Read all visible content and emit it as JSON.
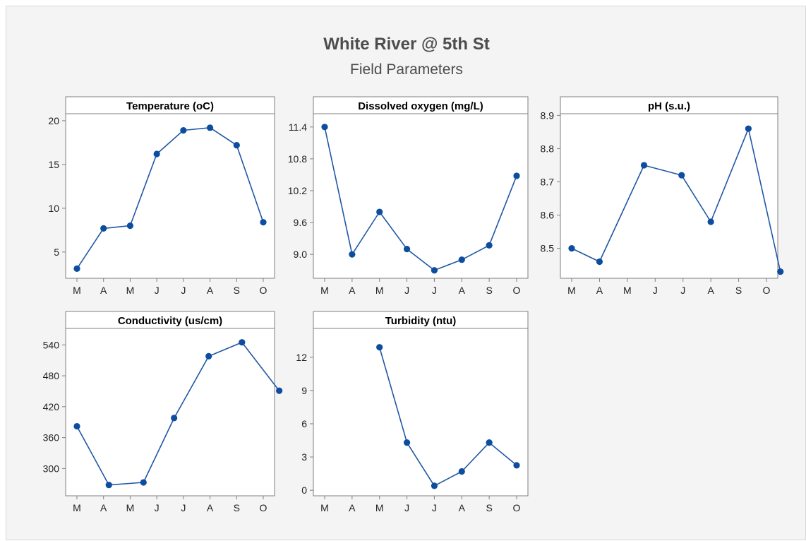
{
  "colors": {
    "series": "#1f57a5",
    "marker": "#0d4da0",
    "panel_bg": "#ffffff",
    "strip_bg": "#ffffff",
    "figure_bg": "#f4f4f4",
    "axis": "#7f7f7f"
  },
  "chart_data": {
    "type": "line",
    "title": "White River @ 5th St",
    "subtitle": "Field Parameters",
    "categories": [
      "M",
      "A",
      "M",
      "J",
      "J",
      "A",
      "S",
      "O"
    ],
    "grid": false,
    "panels": [
      {
        "title": "Temperature (oC)",
        "ylim": [
          2,
          20.8
        ],
        "yticks": [
          5,
          10,
          15,
          20
        ],
        "points": [
          {
            "x": 0,
            "y": 3.1
          },
          {
            "x": 1,
            "y": 7.7
          },
          {
            "x": 2,
            "y": 8.0
          },
          {
            "x": 3,
            "y": 16.2
          },
          {
            "x": 4,
            "y": 18.9
          },
          {
            "x": 5,
            "y": 19.2
          },
          {
            "x": 6,
            "y": 17.2
          },
          {
            "x": 7,
            "y": 8.4
          }
        ]
      },
      {
        "title": "Dissolved oxygen (mg/L)",
        "ylim": [
          8.55,
          11.65
        ],
        "yticks": [
          9.0,
          9.6,
          10.2,
          10.8,
          11.4
        ],
        "tick_decimals": 1,
        "points": [
          {
            "x": 0,
            "y": 11.4
          },
          {
            "x": 1,
            "y": 9.0
          },
          {
            "x": 2,
            "y": 9.8
          },
          {
            "x": 3,
            "y": 9.1
          },
          {
            "x": 4,
            "y": 8.7
          },
          {
            "x": 5,
            "y": 8.9
          },
          {
            "x": 6,
            "y": 9.17
          },
          {
            "x": 7,
            "y": 10.48
          }
        ]
      },
      {
        "title": "pH (s.u.)",
        "ylim": [
          8.41,
          8.905
        ],
        "yticks": [
          8.5,
          8.6,
          8.7,
          8.8,
          8.9
        ],
        "tick_decimals": 1,
        "points": [
          {
            "x": 0,
            "y": 8.5
          },
          {
            "x": 1,
            "y": 8.46
          },
          {
            "x": 2.6,
            "y": 8.75
          },
          {
            "x": 3.95,
            "y": 8.72
          },
          {
            "x": 5,
            "y": 8.58
          },
          {
            "x": 6.35,
            "y": 8.86
          },
          {
            "x": 7.5,
            "y": 8.43
          }
        ]
      },
      {
        "title": "Conductivity (us/cm)",
        "ylim": [
          247,
          572
        ],
        "yticks": [
          300,
          360,
          420,
          480,
          540
        ],
        "points": [
          {
            "x": 0,
            "y": 382
          },
          {
            "x": 1.2,
            "y": 268
          },
          {
            "x": 2.5,
            "y": 273
          },
          {
            "x": 3.65,
            "y": 398
          },
          {
            "x": 4.95,
            "y": 518
          },
          {
            "x": 6.2,
            "y": 545
          },
          {
            "x": 7.6,
            "y": 451
          }
        ]
      },
      {
        "title": "Turbidity (ntu)",
        "ylim": [
          -0.5,
          14.6
        ],
        "yticks": [
          0,
          3,
          6,
          9,
          12
        ],
        "points": [
          {
            "x": 2,
            "y": 12.9
          },
          {
            "x": 3,
            "y": 4.3
          },
          {
            "x": 4,
            "y": 0.4
          },
          {
            "x": 5,
            "y": 1.7
          },
          {
            "x": 6,
            "y": 4.3
          },
          {
            "x": 7,
            "y": 2.25
          }
        ]
      }
    ]
  }
}
